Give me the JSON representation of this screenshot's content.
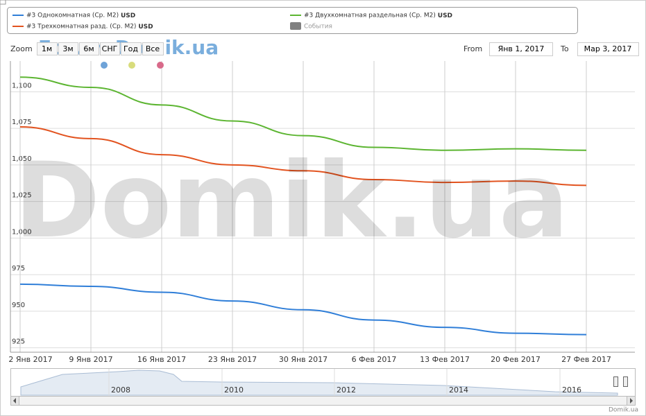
{
  "chart_data": {
    "type": "line",
    "unit": "USD",
    "events_label": "События",
    "events_color": "#808080",
    "zoom_label": "Zoom",
    "zoom_buttons": [
      "1м",
      "3м",
      "6м",
      "СНГ",
      "Год",
      "Все"
    ],
    "from_label": "From",
    "from_value": "Янв 1, 2017",
    "to_label": "To",
    "to_value": "Мар 3, 2017",
    "watermark": "Domik.ua",
    "forum_watermark": "Forum.Domik.ua",
    "credits": "Domik.ua",
    "navigator_years": [
      "2008",
      "2010",
      "2012",
      "2014",
      "2016"
    ],
    "categories": [
      "2 Янв 2017",
      "9 Янв 2017",
      "16 Янв 2017",
      "23 Янв 2017",
      "30 Янв 2017",
      "6 Фев 2017",
      "13 Фев 2017",
      "20 Фев 2017",
      "27 Фев 2017"
    ],
    "series": [
      {
        "name": "#3 Однокомнатная (Ср. М2)",
        "color": "#2f7ed8",
        "values": [
          968.5,
          967,
          963,
          957,
          951,
          944,
          939,
          935,
          934
        ]
      },
      {
        "name": "#3 Двухкомнатная раздельная (Ср. М2)",
        "color": "#5cb531",
        "values": [
          1110,
          1103,
          1091,
          1080,
          1070,
          1062,
          1060,
          1061,
          1060
        ]
      },
      {
        "name": "#3 Трехкомнатная разд. (Ср. М2)",
        "color": "#e2531f",
        "values": [
          1076,
          1068,
          1057,
          1050,
          1046,
          1040,
          1038,
          1039,
          1036
        ]
      }
    ],
    "ylim": [
      922,
      1121
    ],
    "yticks": [
      925,
      950,
      975,
      {
        "value": 1000,
        "label": "1,000"
      },
      {
        "value": 1025,
        "label": "1,025"
      },
      {
        "value": 1050,
        "label": "1,050"
      },
      {
        "value": 1075,
        "label": "1,075"
      },
      {
        "value": 1100,
        "label": "1,100"
      }
    ],
    "grid": true
  }
}
